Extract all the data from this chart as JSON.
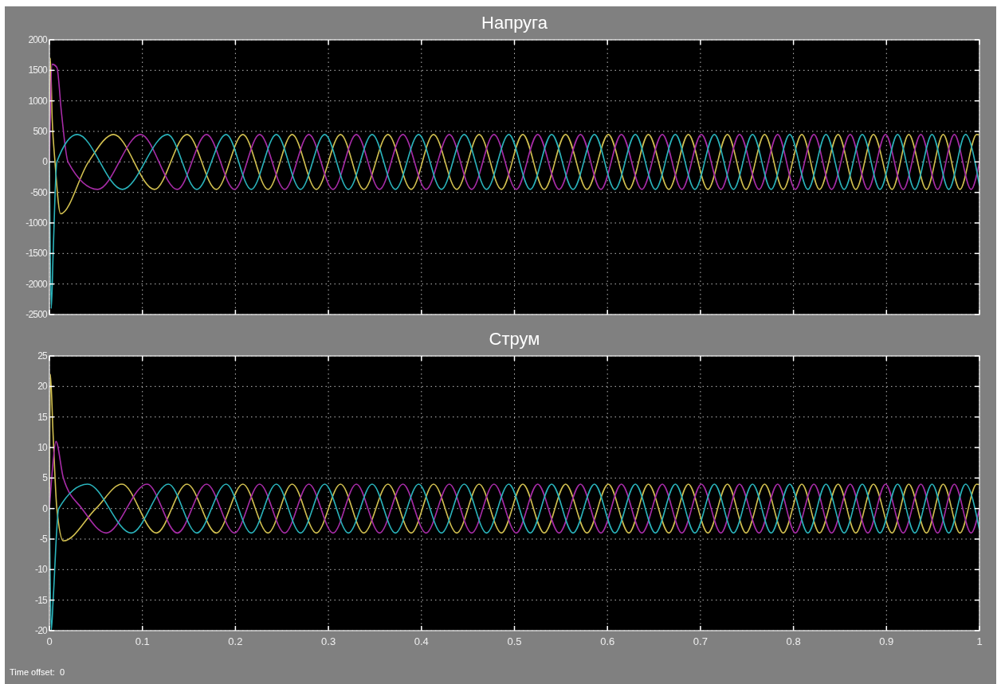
{
  "chart_data": [
    {
      "type": "line",
      "title": "Напруга",
      "xlim": [
        0,
        1
      ],
      "xticks": [
        0,
        0.1,
        0.2,
        0.3,
        0.4,
        0.5,
        0.6,
        0.7,
        0.8,
        0.9,
        1
      ],
      "ylim": [
        -2500,
        2000
      ],
      "yticks": [
        -2500,
        -2000,
        -1500,
        -1000,
        -500,
        0,
        500,
        1000,
        1500,
        2000
      ],
      "grid": true,
      "tick_labels": "y",
      "series": [
        {
          "color": "#d2c050",
          "x": [
            0,
            0.001,
            0.003,
            0.006,
            0.012,
            0.042,
            0.069,
            0.113,
            0.148,
            0.1795,
            0.208,
            0.235,
            0.261,
            0.287,
            0.313,
            0.338,
            0.364,
            0.389,
            0.413,
            0.438,
            0.462,
            0.486,
            0.509,
            0.532,
            0.555,
            0.578,
            0.601,
            0.623,
            0.644,
            0.666,
            0.687,
            0.708,
            0.729,
            0.749,
            0.769,
            0.789,
            0.809,
            0.828,
            0.848,
            0.867,
            0.886,
            0.906,
            0.924,
            0.943,
            0.961,
            0.979,
            0.997,
            1.0
          ],
          "values": [
            0,
            1700,
            700,
            0,
            -850,
            0,
            450,
            -450,
            450,
            -450,
            450,
            -450,
            450,
            -450,
            450,
            -450,
            450,
            -450,
            450,
            -450,
            450,
            -450,
            450,
            -450,
            450,
            -450,
            450,
            -450,
            450,
            -450,
            450,
            -450,
            450,
            -450,
            450,
            -450,
            450,
            -450,
            450,
            -450,
            450,
            -450,
            450,
            -450,
            450,
            -450,
            450,
            440
          ]
        },
        {
          "color": "#a82ca8",
          "x": [
            0,
            0.003,
            0.008,
            0.013,
            0.02,
            0.052,
            0.098,
            0.1375,
            0.169,
            0.199,
            0.226,
            0.253,
            0.279,
            0.305,
            0.33,
            0.355,
            0.38,
            0.405,
            0.43,
            0.454,
            0.478,
            0.502,
            0.525,
            0.548,
            0.571,
            0.593,
            0.615,
            0.637,
            0.659,
            0.68,
            0.701,
            0.722,
            0.742,
            0.763,
            0.783,
            0.802,
            0.822,
            0.841,
            0.861,
            0.88,
            0.899,
            0.918,
            0.937,
            0.955,
            0.973,
            0.991,
            1.0
          ],
          "values": [
            0,
            1600,
            1550,
            800,
            0,
            -450,
            450,
            -450,
            450,
            -450,
            450,
            -450,
            450,
            -450,
            450,
            -450,
            450,
            -450,
            450,
            -450,
            450,
            -450,
            450,
            -450,
            450,
            -450,
            450,
            -450,
            450,
            -450,
            450,
            -450,
            450,
            -450,
            450,
            -450,
            450,
            -450,
            450,
            -450,
            450,
            -450,
            450,
            -450,
            450,
            -450,
            0
          ]
        },
        {
          "color": "#2ab4bc",
          "x": [
            0,
            0.002,
            0.004,
            0.008,
            0.03,
            0.0785,
            0.127,
            0.1585,
            0.19,
            0.217,
            0.244,
            0.27,
            0.296,
            0.3215,
            0.347,
            0.372,
            0.397,
            0.4215,
            0.446,
            0.47,
            0.494,
            0.517,
            0.54,
            0.563,
            0.586,
            0.608,
            0.63,
            0.6515,
            0.673,
            0.694,
            0.715,
            0.7355,
            0.756,
            0.776,
            0.796,
            0.8155,
            0.835,
            0.8545,
            0.874,
            0.893,
            0.912,
            0.9305,
            0.949,
            0.967,
            0.985,
            1.0
          ],
          "values": [
            0,
            -2400,
            -1500,
            0,
            450,
            -450,
            450,
            -450,
            450,
            -450,
            450,
            -450,
            450,
            -450,
            450,
            -450,
            450,
            -450,
            450,
            -450,
            450,
            -450,
            450,
            -450,
            450,
            -450,
            450,
            -450,
            450,
            -450,
            450,
            -450,
            450,
            -450,
            450,
            -450,
            450,
            -450,
            450,
            -450,
            450,
            -450,
            450,
            -450,
            450,
            -390
          ]
        }
      ]
    },
    {
      "type": "line",
      "title": "Струм",
      "xlim": [
        0,
        1
      ],
      "xticks": [
        0,
        0.1,
        0.2,
        0.3,
        0.4,
        0.5,
        0.6,
        0.7,
        0.8,
        0.9,
        1
      ],
      "ylim": [
        -20,
        25
      ],
      "yticks": [
        -20,
        -15,
        -10,
        -5,
        0,
        5,
        10,
        15,
        20,
        25
      ],
      "grid": true,
      "annotations": [
        "Time offset:  0"
      ],
      "series": [
        {
          "color": "#d2c050",
          "x": [
            0,
            0.001,
            0.004,
            0.008,
            0.015,
            0.05,
            0.078,
            0.115,
            0.148,
            0.1795,
            0.208,
            0.235,
            0.261,
            0.287,
            0.313,
            0.338,
            0.364,
            0.389,
            0.413,
            0.438,
            0.462,
            0.486,
            0.509,
            0.532,
            0.555,
            0.578,
            0.601,
            0.623,
            0.644,
            0.666,
            0.687,
            0.708,
            0.729,
            0.749,
            0.769,
            0.789,
            0.809,
            0.828,
            0.848,
            0.867,
            0.886,
            0.906,
            0.924,
            0.943,
            0.961,
            0.979,
            0.997,
            1.0
          ],
          "values": [
            0,
            22,
            12,
            0,
            -5.3,
            0,
            4,
            -4,
            4,
            -4,
            4,
            -4,
            4,
            -4,
            4,
            -4,
            4,
            -4,
            4,
            -4,
            4,
            -4,
            4,
            -4,
            4,
            -4,
            4,
            -4,
            4,
            -4,
            4,
            -4,
            4,
            -4,
            4,
            -4,
            4,
            -4,
            4,
            -4,
            4,
            -4,
            4,
            -4,
            4,
            -4,
            4,
            3.9
          ]
        },
        {
          "color": "#a82ca8",
          "x": [
            0,
            0.003,
            0.007,
            0.015,
            0.035,
            0.061,
            0.105,
            0.1375,
            0.169,
            0.199,
            0.226,
            0.253,
            0.279,
            0.305,
            0.33,
            0.355,
            0.38,
            0.405,
            0.43,
            0.454,
            0.478,
            0.502,
            0.525,
            0.548,
            0.571,
            0.593,
            0.615,
            0.637,
            0.659,
            0.68,
            0.701,
            0.722,
            0.742,
            0.763,
            0.783,
            0.802,
            0.822,
            0.841,
            0.861,
            0.88,
            0.899,
            0.918,
            0.937,
            0.955,
            0.973,
            0.991,
            1.0
          ],
          "values": [
            0,
            6,
            11,
            5,
            0,
            -4,
            4,
            -4,
            4,
            -4,
            4,
            -4,
            4,
            -4,
            4,
            -4,
            4,
            -4,
            4,
            -4,
            4,
            -4,
            4,
            -4,
            4,
            -4,
            4,
            -4,
            4,
            -4,
            4,
            -4,
            4,
            -4,
            4,
            -4,
            4,
            -4,
            4,
            -4,
            4,
            -4,
            4,
            -4,
            4,
            -4,
            0
          ]
        },
        {
          "color": "#2ab4bc",
          "x": [
            0,
            0.002,
            0.004,
            0.01,
            0.041,
            0.088,
            0.128,
            0.1585,
            0.19,
            0.217,
            0.244,
            0.27,
            0.296,
            0.3215,
            0.347,
            0.372,
            0.397,
            0.4215,
            0.446,
            0.47,
            0.494,
            0.517,
            0.54,
            0.563,
            0.586,
            0.608,
            0.63,
            0.6515,
            0.673,
            0.694,
            0.715,
            0.7355,
            0.756,
            0.776,
            0.796,
            0.8155,
            0.835,
            0.8545,
            0.874,
            0.893,
            0.912,
            0.9305,
            0.949,
            0.967,
            0.985,
            1.0
          ],
          "values": [
            0,
            -20,
            -15,
            0,
            4,
            -4,
            4,
            -4,
            4,
            -4,
            4,
            -4,
            4,
            -4,
            4,
            -4,
            4,
            -4,
            4,
            -4,
            4,
            -4,
            4,
            -4,
            4,
            -4,
            4,
            -4,
            4,
            -4,
            4,
            -4,
            4,
            -4,
            4,
            -4,
            4,
            -4,
            4,
            -4,
            4,
            -4,
            4,
            -4,
            4,
            -3.5
          ]
        }
      ]
    }
  ]
}
